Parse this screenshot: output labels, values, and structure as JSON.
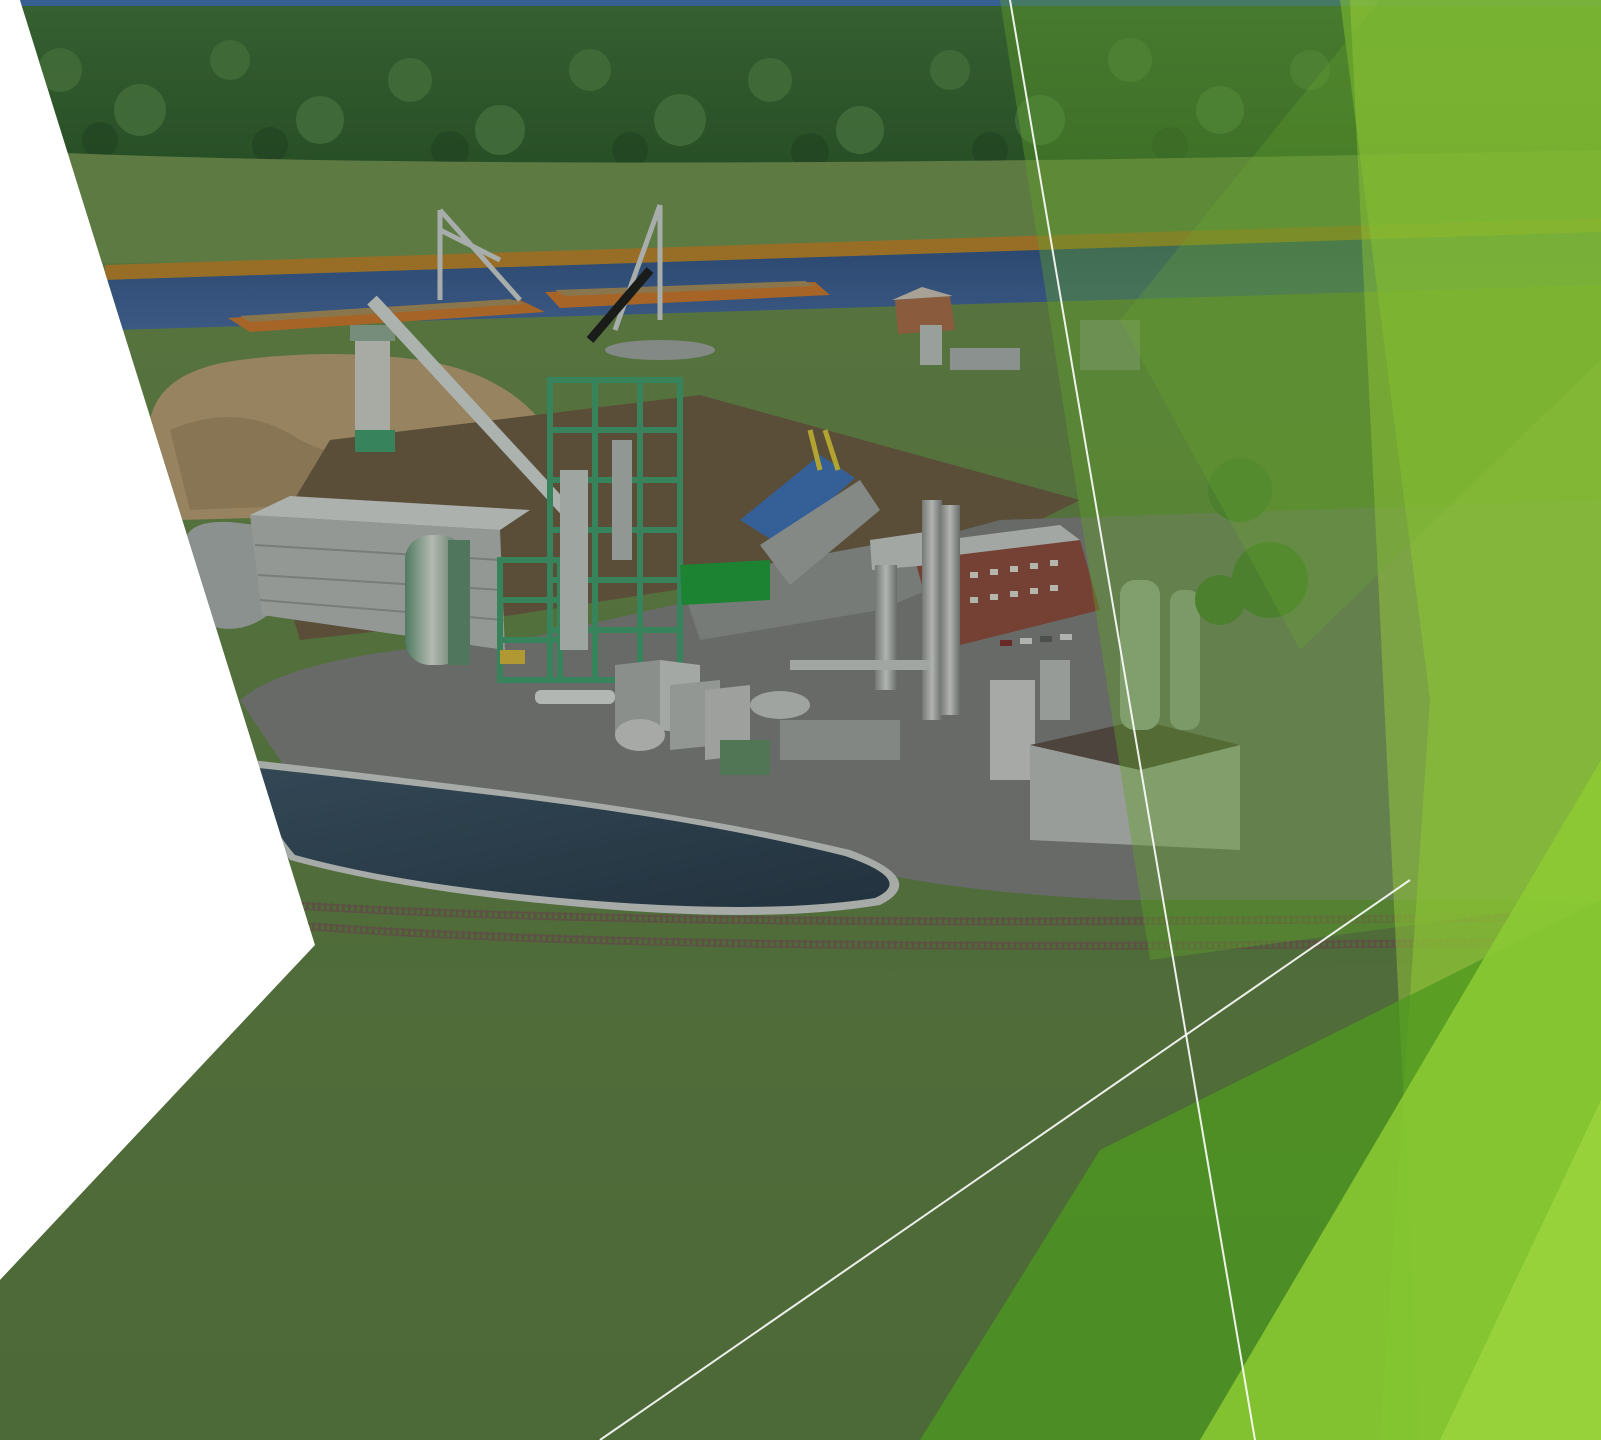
{
  "slide": {
    "theme_name": "facet-green",
    "colors": {
      "background": "#ffffff",
      "sky": "#3f6fb0",
      "forest_dark": "#2c5a2a",
      "forest_light": "#5a8a48",
      "grass": "#6f8f52",
      "grass_dark": "#5e7e46",
      "river": "#3c5f96",
      "quay": "#b6802c",
      "barge": "#c7752e",
      "wood_pile": "#b59a72",
      "chip_field": "#6b5a44",
      "pavement": "#7a7c7c",
      "pavement_light": "#8e9090",
      "steel_green": "#3f9a6e",
      "building_grey": "#a7a9a9",
      "brick": "#8a4a3e",
      "pond": "#35485a",
      "rail": "#6e5e50",
      "accent_green": "#7fbf2f",
      "accent_green_dark": "#4e9a1f",
      "accent_lime": "#9ccf3a"
    },
    "image_subject": "biomass-power-plant-render"
  }
}
